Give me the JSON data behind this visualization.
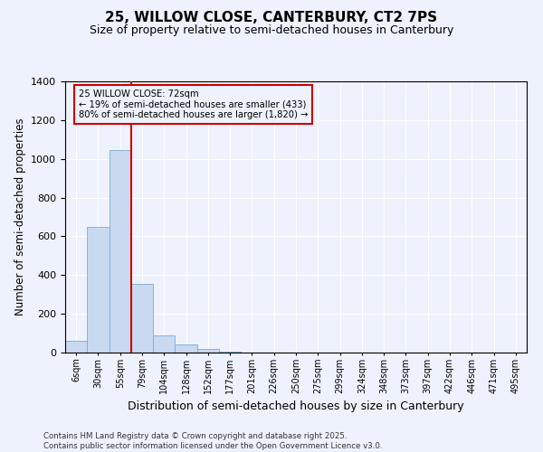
{
  "title": "25, WILLOW CLOSE, CANTERBURY, CT2 7PS",
  "subtitle": "Size of property relative to semi-detached houses in Canterbury",
  "xlabel": "Distribution of semi-detached houses by size in Canterbury",
  "ylabel": "Number of semi-detached properties",
  "annotation_line": "25 WILLOW CLOSE: 72sqm",
  "annotation_smaller": "← 19% of semi-detached houses are smaller (433)",
  "annotation_larger": "80% of semi-detached houses are larger (1,820) →",
  "categories": [
    "6sqm",
    "30sqm",
    "55sqm",
    "79sqm",
    "104sqm",
    "128sqm",
    "152sqm",
    "177sqm",
    "201sqm",
    "226sqm",
    "250sqm",
    "275sqm",
    "299sqm",
    "324sqm",
    "348sqm",
    "373sqm",
    "397sqm",
    "422sqm",
    "446sqm",
    "471sqm",
    "495sqm"
  ],
  "values": [
    60,
    650,
    1045,
    355,
    90,
    40,
    20,
    5,
    2,
    2,
    1,
    0,
    0,
    0,
    0,
    0,
    0,
    0,
    0,
    0,
    0
  ],
  "bar_color": "#c8d9f0",
  "bar_edge_color": "#7aadd6",
  "vline_color": "#cc0000",
  "vline_bin_index": 3,
  "annotation_box_color": "#cc0000",
  "background_color": "#eef2fc",
  "ylim": [
    0,
    1400
  ],
  "yticks": [
    0,
    200,
    400,
    600,
    800,
    1000,
    1200,
    1400
  ],
  "footer_line1": "Contains HM Land Registry data © Crown copyright and database right 2025.",
  "footer_line2": "Contains public sector information licensed under the Open Government Licence v3.0.",
  "title_fontsize": 11,
  "subtitle_fontsize": 9,
  "xlabel_fontsize": 9,
  "ylabel_fontsize": 8.5
}
